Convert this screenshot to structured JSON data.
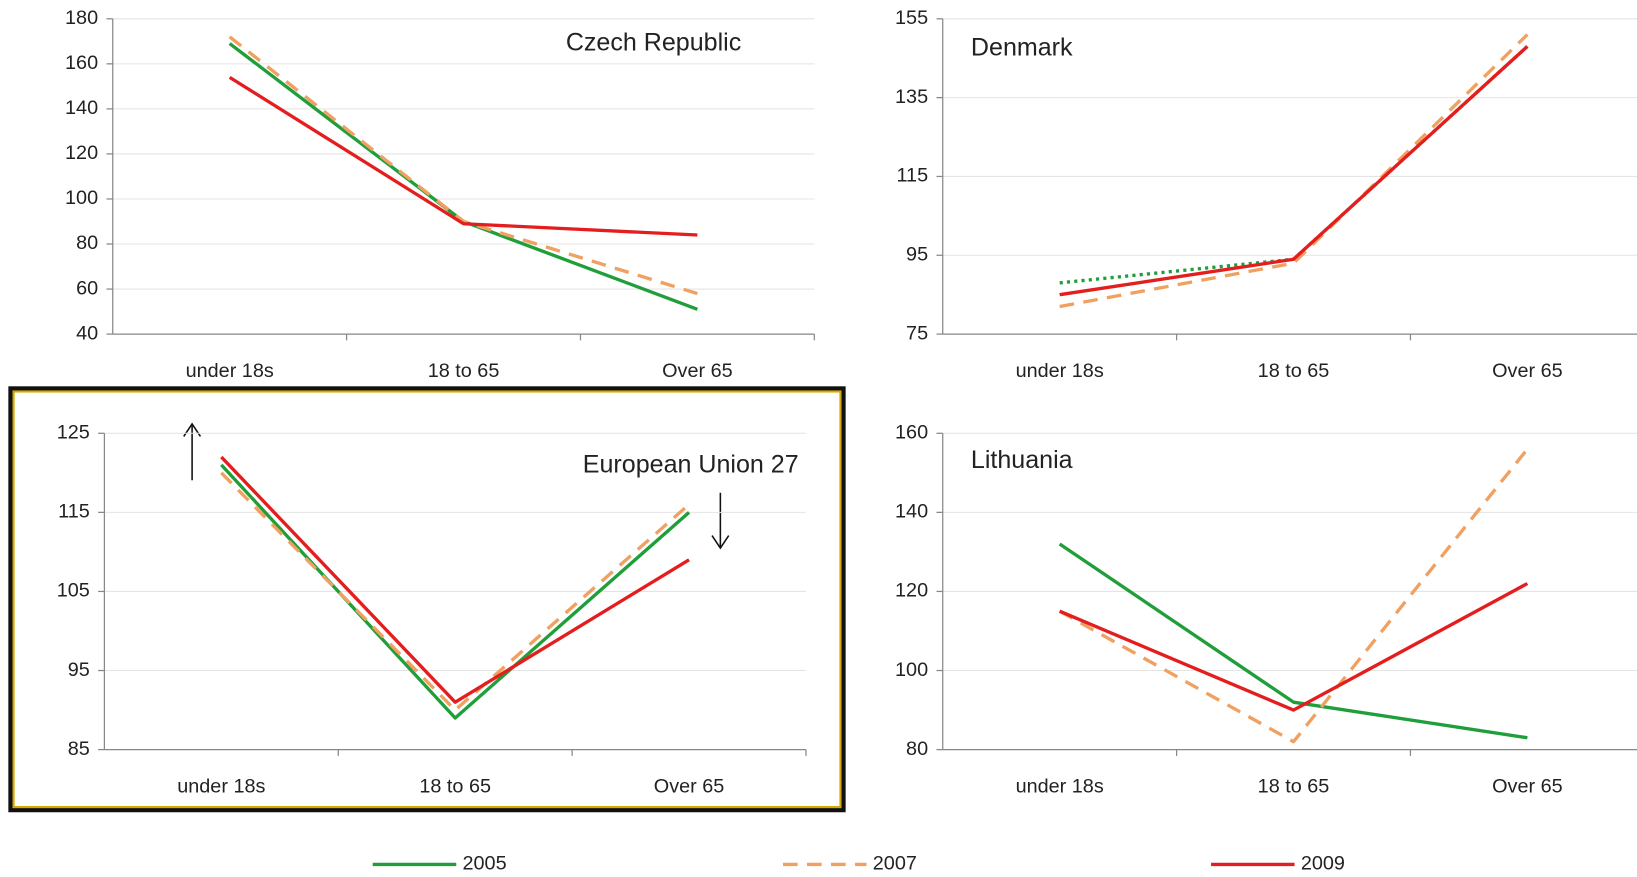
{
  "chart_data": [
    {
      "type": "line",
      "title": "Czech Republic",
      "categories": [
        "under 18s",
        "18 to 65",
        "Over 65"
      ],
      "ylim": [
        40,
        180
      ],
      "yticks": [
        40,
        60,
        80,
        100,
        120,
        140,
        160,
        180
      ],
      "grid": true,
      "series": [
        {
          "name": "2005",
          "color": "#1f9e3a",
          "line_style": "solid",
          "values": [
            169,
            90,
            51
          ]
        },
        {
          "name": "2007",
          "color": "#f0a060",
          "line_style": "dashed",
          "values": [
            172,
            90,
            58
          ]
        },
        {
          "name": "2009",
          "color": "#e41e1e",
          "line_style": "solid",
          "values": [
            154,
            89,
            84
          ]
        }
      ]
    },
    {
      "type": "line",
      "title": "Denmark",
      "categories": [
        "under 18s",
        "18 to 65",
        "Over 65"
      ],
      "ylim": [
        75,
        155
      ],
      "yticks": [
        75,
        95,
        115,
        135,
        155
      ],
      "grid": true,
      "series": [
        {
          "color": "#1f9e3a",
          "line_style": "dotted",
          "values": [
            88,
            94,
            148
          ]
        },
        {
          "color": "#f0a060",
          "line_style": "dashed",
          "values": [
            82,
            93,
            151
          ]
        },
        {
          "color": "#e41e1e",
          "line_style": "solid",
          "values": [
            85,
            94,
            148
          ]
        }
      ]
    },
    {
      "type": "line",
      "title": "European Union 27",
      "categories": [
        "under 18s",
        "18 to 65",
        "Over 65"
      ],
      "ylim": [
        85,
        125
      ],
      "yticks": [
        85,
        95,
        105,
        115,
        125
      ],
      "grid": true,
      "series": [
        {
          "color": "#1f9e3a",
          "line_style": "solid",
          "values": [
            121,
            89,
            115
          ]
        },
        {
          "color": "#f0a060",
          "line_style": "dashed",
          "values": [
            120,
            90,
            116
          ]
        },
        {
          "color": "#e41e1e",
          "line_style": "solid",
          "values": [
            122,
            91,
            109
          ]
        }
      ]
    },
    {
      "type": "line",
      "title": "Lithuania",
      "categories": [
        "under 18s",
        "18 to 65",
        "Over 65"
      ],
      "ylim": [
        80,
        160
      ],
      "yticks": [
        80,
        100,
        120,
        140,
        160
      ],
      "grid": true,
      "series": [
        {
          "color": "#1f9e3a",
          "line_style": "solid",
          "values": [
            132,
            92,
            83
          ]
        },
        {
          "color": "#f0a060",
          "line_style": "dashed",
          "values": [
            115,
            82,
            156
          ]
        },
        {
          "color": "#e41e1e",
          "line_style": "solid",
          "values": [
            115,
            90,
            122
          ]
        }
      ]
    }
  ]
}
